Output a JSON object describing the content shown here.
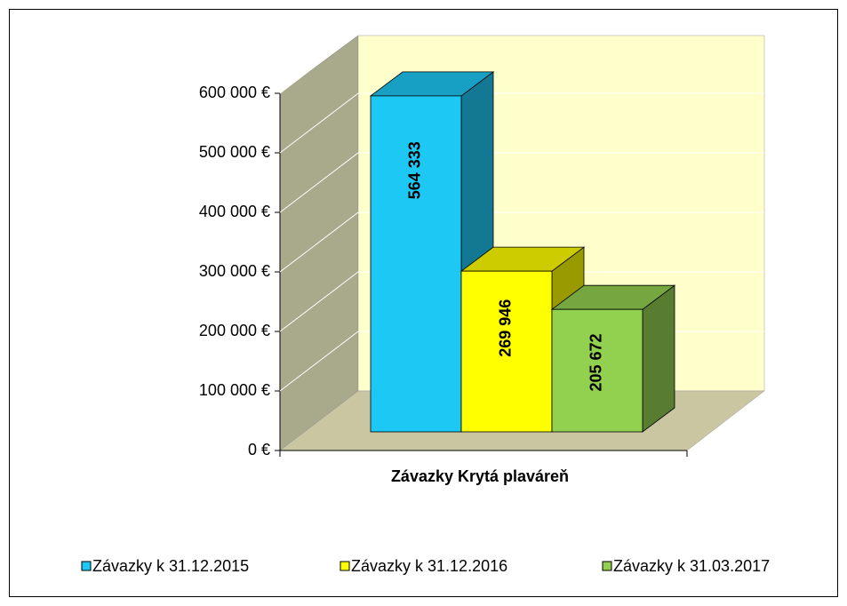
{
  "chart_data": {
    "type": "bar3d",
    "categories": [
      "Závazky Krytá plaváreň"
    ],
    "series": [
      {
        "name": "Závazky k 31.12.2015",
        "color": "#1ec8f5",
        "values": [
          564333
        ],
        "value_labels": [
          "564 333"
        ]
      },
      {
        "name": "Závazky k 31.12.2016",
        "color": "#ffff00",
        "values": [
          269946
        ],
        "value_labels": [
          "269 946"
        ]
      },
      {
        "name": "Závazky k 31.03.2017",
        "color": "#92d050",
        "values": [
          205672
        ],
        "value_labels": [
          "205 672"
        ]
      }
    ],
    "ylim": [
      0,
      600000
    ],
    "yticks": [
      {
        "value": 0,
        "label": "0 €"
      },
      {
        "value": 100000,
        "label": "100 000 €"
      },
      {
        "value": 200000,
        "label": "200 000 €"
      },
      {
        "value": 300000,
        "label": "300 000 €"
      },
      {
        "value": 400000,
        "label": "400 000 €"
      },
      {
        "value": 500000,
        "label": "500 000 €"
      },
      {
        "value": 600000,
        "label": "600 000 €"
      }
    ],
    "grid": true,
    "legend": "bottom"
  }
}
